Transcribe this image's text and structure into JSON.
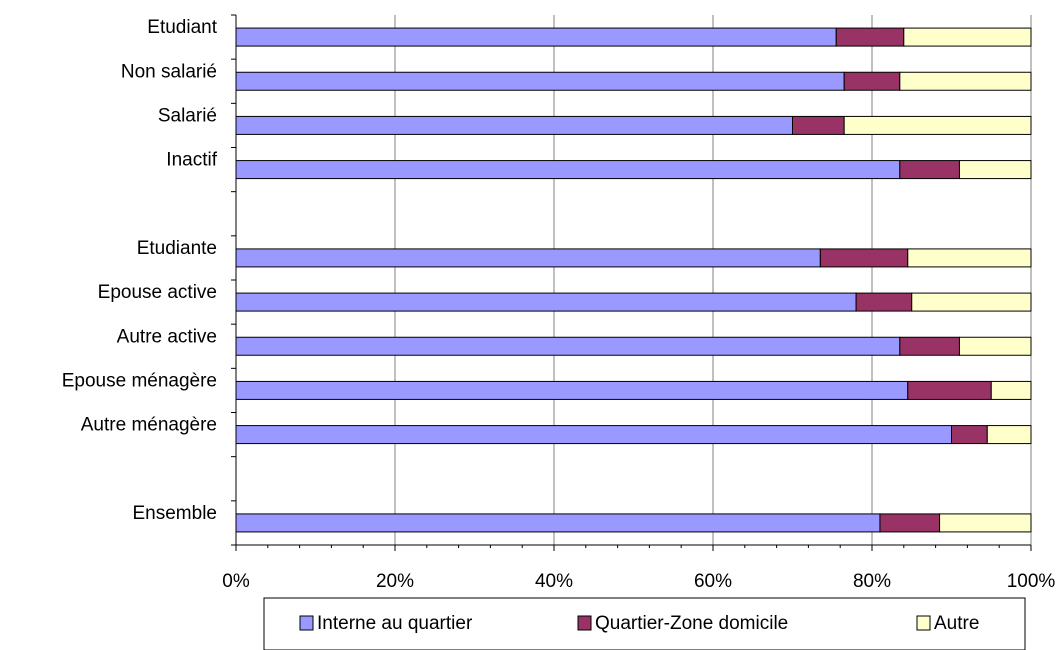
{
  "chart_data": {
    "type": "bar",
    "orientation": "horizontal",
    "stacked": "percent",
    "title": "",
    "xlabel": "",
    "ylabel": "",
    "xlim": [
      0,
      100
    ],
    "x_ticks": [
      "0%",
      "20%",
      "40%",
      "60%",
      "80%",
      "100%"
    ],
    "grid": "vertical major gridlines",
    "legend_position": "bottom",
    "categories": [
      "Etudiant",
      "Non salarié",
      "Salarié",
      "Inactif",
      "",
      "Etudiante",
      "Epouse active ",
      "Autre active",
      "Epouse ménagère",
      "Autre ménagère",
      "",
      "Ensemble"
    ],
    "series": [
      {
        "name": "Interne au quartier",
        "color": "#9999ff",
        "values": [
          75.5,
          76.5,
          70.0,
          83.5,
          null,
          73.5,
          78.0,
          83.5,
          84.5,
          90.0,
          null,
          81.0
        ]
      },
      {
        "name": "Quartier-Zone domicile",
        "color": "#993366",
        "values": [
          8.5,
          7.0,
          6.5,
          7.5,
          null,
          11.0,
          7.0,
          7.5,
          10.5,
          4.5,
          null,
          7.5
        ]
      },
      {
        "name": "Autre",
        "color": "#ffffcc",
        "values": [
          16.0,
          16.5,
          23.5,
          9.0,
          null,
          15.5,
          15.0,
          9.0,
          5.0,
          5.5,
          null,
          11.5
        ]
      }
    ]
  }
}
